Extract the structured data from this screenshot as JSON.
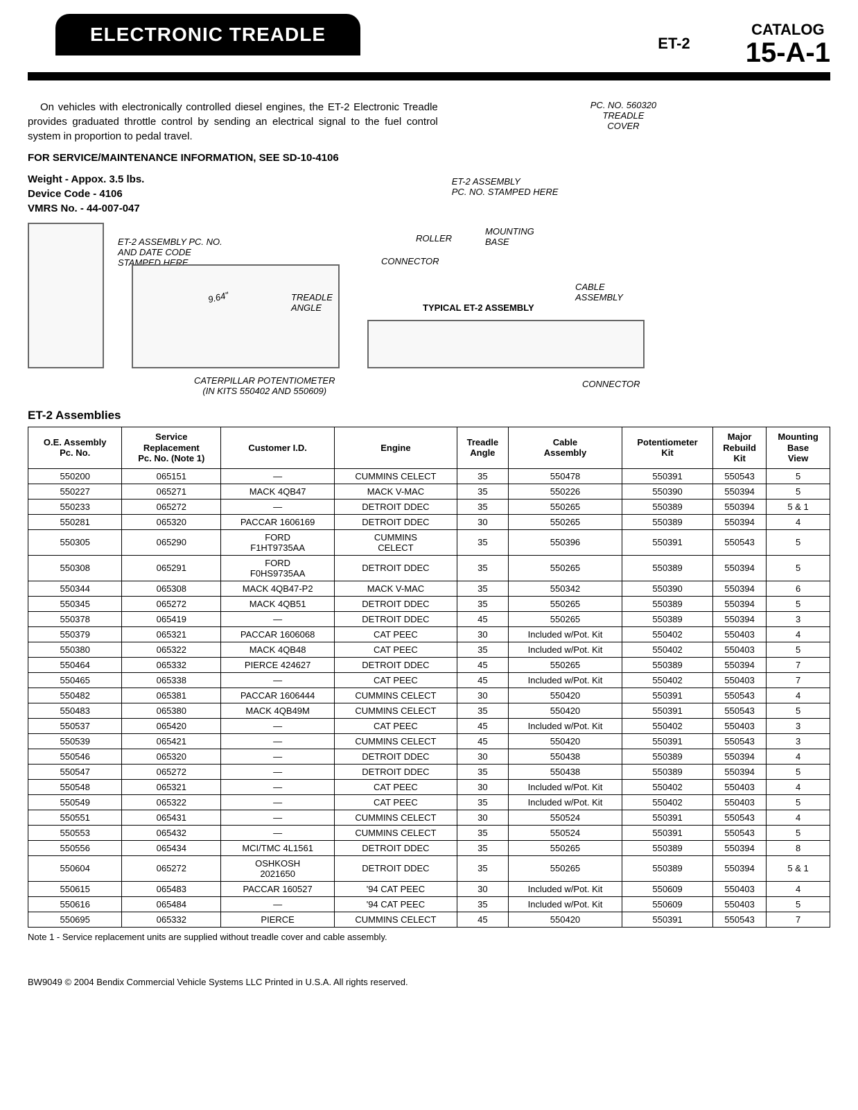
{
  "header": {
    "title": "ELECTRONIC TREADLE",
    "model": "ET-2",
    "catalog_label": "CATALOG",
    "catalog_number": "15-A-1"
  },
  "intro": {
    "paragraph": "On vehicles with electronically controlled diesel engines, the ET-2 Electronic Treadle provides graduated throttle control by sending an electrical signal to the fuel control system in proportion to pedal travel.",
    "service_info": "FOR SERVICE/MAINTENANCE INFORMATION, SEE SD-10-4106",
    "weight": "Weight - Appox. 3.5 lbs.",
    "device_code": "Device Code - 4106",
    "vmrs": "VMRS No. - 44-007-047"
  },
  "diagram_labels": {
    "treadle_cover": "PC. NO. 560320\nTREADLE\nCOVER",
    "assembly_stamp": "ET-2 ASSEMBLY\nPC. NO. STAMPED HERE",
    "roller": "ROLLER",
    "mounting_base": "MOUNTING\nBASE",
    "connector": "CONNECTOR",
    "cable_assembly": "CABLE\nASSEMBLY",
    "typical": "TYPICAL ET-2 ASSEMBLY",
    "cable": "CABLE",
    "connector2": "CONNECTOR",
    "left_stamp": "ET-2 ASSEMBLY PC. NO.\nAND DATE CODE\nSTAMPED HERE",
    "treadle_angle": "TREADLE\nANGLE",
    "dimension": "9.64\"",
    "caterpillar": "CATERPILLAR POTENTIOMETER\n(IN KITS 550402 AND 550609)"
  },
  "table": {
    "title": "ET-2 Assemblies",
    "columns": [
      "O.E. Assembly\nPc. No.",
      "Service\nReplacement\nPc. No. (Note 1)",
      "Customer I.D.",
      "Engine",
      "Treadle\nAngle",
      "Cable\nAssembly",
      "Potentiometer\nKit",
      "Major\nRebuild\nKit",
      "Mounting\nBase\nView"
    ],
    "rows": [
      [
        "550200",
        "065151",
        "—",
        "CUMMINS CELECT",
        "35",
        "550478",
        "550391",
        "550543",
        "5"
      ],
      [
        "550227",
        "065271",
        "MACK 4QB47",
        "MACK V-MAC",
        "35",
        "550226",
        "550390",
        "550394",
        "5"
      ],
      [
        "550233",
        "065272",
        "—",
        "DETROIT DDEC",
        "35",
        "550265",
        "550389",
        "550394",
        "5 & 1"
      ],
      [
        "550281",
        "065320",
        "PACCAR 1606169",
        "DETROIT DDEC",
        "30",
        "550265",
        "550389",
        "550394",
        "4"
      ],
      [
        "550305",
        "065290",
        "FORD\nF1HT9735AA",
        "CUMMINS\nCELECT",
        "35",
        "550396",
        "550391",
        "550543",
        "5"
      ],
      [
        "550308",
        "065291",
        "FORD\nF0HS9735AA",
        "DETROIT DDEC",
        "35",
        "550265",
        "550389",
        "550394",
        "5"
      ],
      [
        "550344",
        "065308",
        "MACK 4QB47-P2",
        "MACK V-MAC",
        "35",
        "550342",
        "550390",
        "550394",
        "6"
      ],
      [
        "550345",
        "065272",
        "MACK 4QB51",
        "DETROIT DDEC",
        "35",
        "550265",
        "550389",
        "550394",
        "5"
      ],
      [
        "550378",
        "065419",
        "—",
        "DETROIT DDEC",
        "45",
        "550265",
        "550389",
        "550394",
        "3"
      ],
      [
        "550379",
        "065321",
        "PACCAR 1606068",
        "CAT PEEC",
        "30",
        "Included w/Pot. Kit",
        "550402",
        "550403",
        "4"
      ],
      [
        "550380",
        "065322",
        "MACK 4QB48",
        "CAT PEEC",
        "35",
        "Included w/Pot. Kit",
        "550402",
        "550403",
        "5"
      ],
      [
        "550464",
        "065332",
        "PIERCE 424627",
        "DETROIT DDEC",
        "45",
        "550265",
        "550389",
        "550394",
        "7"
      ],
      [
        "550465",
        "065338",
        "—",
        "CAT PEEC",
        "45",
        "Included w/Pot. Kit",
        "550402",
        "550403",
        "7"
      ],
      [
        "550482",
        "065381",
        "PACCAR 1606444",
        "CUMMINS CELECT",
        "30",
        "550420",
        "550391",
        "550543",
        "4"
      ],
      [
        "550483",
        "065380",
        "MACK 4QB49M",
        "CUMMINS CELECT",
        "35",
        "550420",
        "550391",
        "550543",
        "5"
      ],
      [
        "550537",
        "065420",
        "—",
        "CAT PEEC",
        "45",
        "Included w/Pot. Kit",
        "550402",
        "550403",
        "3"
      ],
      [
        "550539",
        "065421",
        "—",
        "CUMMINS CELECT",
        "45",
        "550420",
        "550391",
        "550543",
        "3"
      ],
      [
        "550546",
        "065320",
        "—",
        "DETROIT DDEC",
        "30",
        "550438",
        "550389",
        "550394",
        "4"
      ],
      [
        "550547",
        "065272",
        "—",
        "DETROIT DDEC",
        "35",
        "550438",
        "550389",
        "550394",
        "5"
      ],
      [
        "550548",
        "065321",
        "—",
        "CAT PEEC",
        "30",
        "Included w/Pot. Kit",
        "550402",
        "550403",
        "4"
      ],
      [
        "550549",
        "065322",
        "—",
        "CAT PEEC",
        "35",
        "Included w/Pot. Kit",
        "550402",
        "550403",
        "5"
      ],
      [
        "550551",
        "065431",
        "—",
        "CUMMINS CELECT",
        "30",
        "550524",
        "550391",
        "550543",
        "4"
      ],
      [
        "550553",
        "065432",
        "—",
        "CUMMINS CELECT",
        "35",
        "550524",
        "550391",
        "550543",
        "5"
      ],
      [
        "550556",
        "065434",
        "MCI/TMC 4L1561",
        "DETROIT DDEC",
        "35",
        "550265",
        "550389",
        "550394",
        "8"
      ],
      [
        "550604",
        "065272",
        "OSHKOSH\n2021650",
        "DETROIT DDEC",
        "35",
        "550265",
        "550389",
        "550394",
        "5 & 1"
      ],
      [
        "550615",
        "065483",
        "PACCAR 160527",
        "'94 CAT PEEC",
        "30",
        "Included w/Pot. Kit",
        "550609",
        "550403",
        "4"
      ],
      [
        "550616",
        "065484",
        "—",
        "'94 CAT PEEC",
        "35",
        "Included w/Pot. Kit",
        "550609",
        "550403",
        "5"
      ],
      [
        "550695",
        "065332",
        "PIERCE",
        "CUMMINS CELECT",
        "45",
        "550420",
        "550391",
        "550543",
        "7"
      ]
    ],
    "note": "Note 1 - Service replacement units are supplied without treadle cover and cable assembly."
  },
  "footer": "BW9049   © 2004 Bendix Commercial Vehicle Systems LLC   Printed in U.S.A.   All rights reserved.",
  "styling": {
    "page_bg": "#ffffff",
    "header_bg": "#000000",
    "header_fg": "#ffffff",
    "border_color": "#000000",
    "body_font_size": 15,
    "table_font_size": 13
  }
}
